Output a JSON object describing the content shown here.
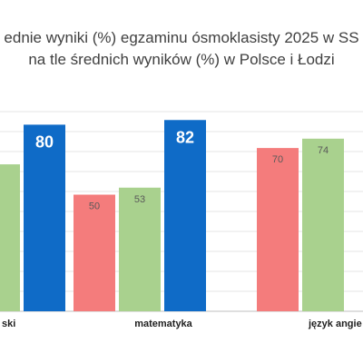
{
  "chart_data": {
    "type": "bar",
    "title_lines": [
      "ednie wyniki (%) egzaminu ósmoklasisty 2025 w SS",
      "na tle średnich wyników (%) w Polsce i Łodzi"
    ],
    "categories": [
      "ski",
      "matematyka",
      "język angie"
    ],
    "series": [
      {
        "values": [
          null,
          50,
          70
        ],
        "color": "#f47c7c"
      },
      {
        "values": [
          null,
          53,
          74
        ],
        "color": "#a9d18e"
      },
      {
        "values": [
          80,
          82,
          null
        ],
        "color": "#0f6bc7"
      }
    ],
    "visible_labels": [
      [
        null,
        "50",
        "70"
      ],
      [
        null,
        "53",
        "74"
      ],
      [
        "80",
        "82",
        null
      ]
    ],
    "ylim": [
      0,
      100
    ],
    "grid": true,
    "bars_partially_visible": {
      "first_category_series_1_value": 63
    }
  }
}
